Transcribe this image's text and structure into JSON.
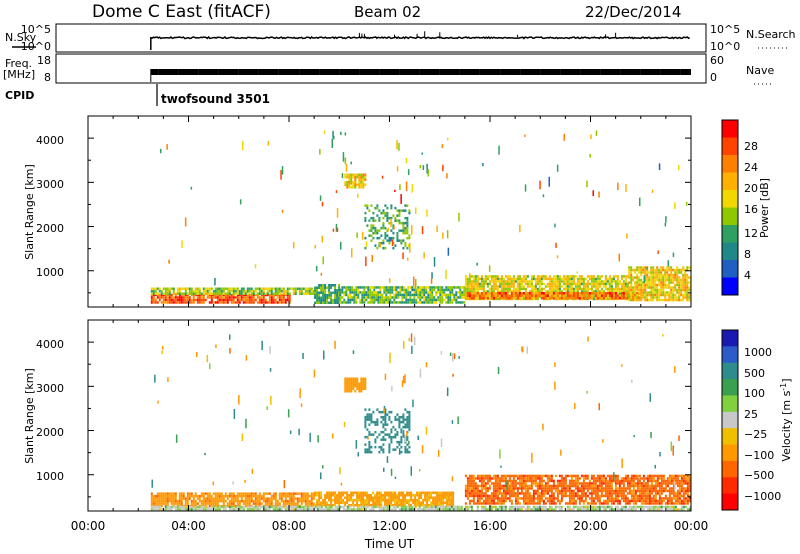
{
  "header": {
    "station": "Dome C East (fitACF)",
    "beam": "Beam 02",
    "date": "22/Dec/2014"
  },
  "nsky_panel": {
    "left_label": "N.Sky",
    "right_label": "N.Search",
    "left_ticks": [
      "10^5",
      "10^0"
    ],
    "right_ticks": [
      "10^5",
      "10^0"
    ]
  },
  "freq_panel": {
    "left_label_1": "Freq.",
    "left_label_2": "[MHz]",
    "right_label": "Nave",
    "left_ticks": [
      "18",
      "8"
    ],
    "right_ticks": [
      "60",
      "0"
    ]
  },
  "cpid": {
    "label": "CPID",
    "program": "twofsound 3501",
    "start_hour": 2.5
  },
  "axes": {
    "xlabel": "Time UT",
    "ylabel": "Slant Range [km]",
    "x_ticks": [
      "00:00",
      "04:00",
      "08:00",
      "12:00",
      "16:00",
      "20:00",
      "00:00"
    ],
    "y_ticks": [
      "1000",
      "2000",
      "3000",
      "4000"
    ]
  },
  "power_colorbar": {
    "label": "Power [dB]",
    "ticks": [
      "28",
      "24",
      "20",
      "16",
      "12",
      "8",
      "4"
    ],
    "colors": [
      "#ff0000",
      "#ff4400",
      "#ff8000",
      "#ffb000",
      "#f0d800",
      "#90c800",
      "#30a060",
      "#208888",
      "#2060c0",
      "#0000ff"
    ]
  },
  "velocity_colorbar": {
    "label": "Velocity [m s",
    "label_sup": "-1",
    "label_end": "]",
    "ticks": [
      "1000",
      "500",
      "100",
      "25",
      "−25",
      "−100",
      "−500",
      "−1000"
    ],
    "colors": [
      "#1a1ab0",
      "#2b5cc8",
      "#2e8c8c",
      "#3aa050",
      "#80d040",
      "#c8c8c8",
      "#f0c000",
      "#ff9900",
      "#ff6600",
      "#ff2a00",
      "#ff0000"
    ]
  },
  "chart_data": {
    "type": "heatmap",
    "xlim": [
      0,
      24
    ],
    "ylim": [
      180,
      4500
    ],
    "power_regions": [
      {
        "t0": 2.5,
        "t1": 8.0,
        "r0": 300,
        "r1": 480,
        "level": 26
      },
      {
        "t0": 2.5,
        "t1": 9.0,
        "r0": 480,
        "r1": 620,
        "level": 14
      },
      {
        "t0": 9.0,
        "t1": 10.0,
        "r0": 300,
        "r1": 700,
        "level": 10
      },
      {
        "t0": 10.0,
        "t1": 15.0,
        "r0": 300,
        "r1": 650,
        "level": 12
      },
      {
        "t0": 15.0,
        "t1": 21.5,
        "r0": 350,
        "r1": 900,
        "level": 16
      },
      {
        "t0": 15.0,
        "t1": 22.0,
        "r0": 400,
        "r1": 520,
        "level": 24
      },
      {
        "t0": 21.5,
        "t1": 24.0,
        "r0": 350,
        "r1": 1100,
        "level": 18
      },
      {
        "t0": 11.0,
        "t1": 12.8,
        "r0": 1500,
        "r1": 2500,
        "level": 10
      },
      {
        "t0": 10.2,
        "t1": 11.0,
        "r0": 2900,
        "r1": 3200,
        "level": 18
      }
    ],
    "velocity_regions": [
      {
        "t0": 2.5,
        "t1": 9.0,
        "r0": 300,
        "r1": 600,
        "value": -150
      },
      {
        "t0": 9.0,
        "t1": 14.5,
        "r0": 300,
        "r1": 620,
        "value": -80
      },
      {
        "t0": 15.0,
        "t1": 24.0,
        "r0": 350,
        "r1": 1000,
        "value": -300
      },
      {
        "t0": 11.0,
        "t1": 12.8,
        "r0": 1500,
        "r1": 2500,
        "value": 200
      },
      {
        "t0": 10.2,
        "t1": 11.0,
        "r0": 2900,
        "r1": 3200,
        "value": -120
      },
      {
        "t0": 2.5,
        "t1": 24.0,
        "r0": 180,
        "r1": 300,
        "value": 0
      }
    ]
  }
}
